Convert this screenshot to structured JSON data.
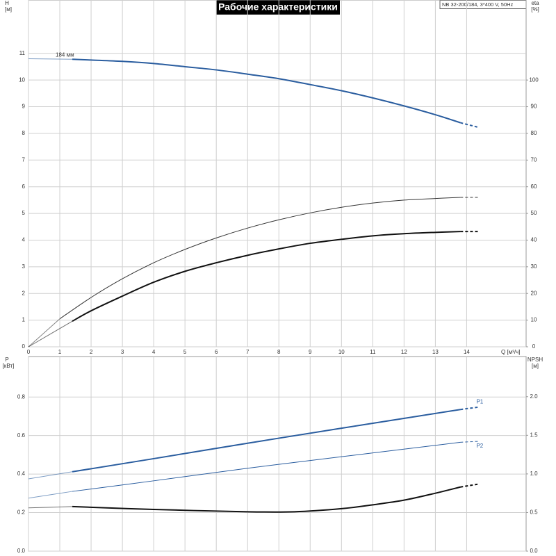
{
  "chart_data": [
    {
      "type": "line",
      "title": "Рабочие характеристики",
      "subtitle": "NB 32-200/184, 3*400 V, 50Hz",
      "ylabel": "H",
      "yunit": "[м]",
      "y2label": "eta",
      "y2unit": "[%]",
      "xlabel": "Q [м³/ч]",
      "annotations": [
        "184 мм"
      ],
      "xlim": [
        0,
        15.9
      ],
      "xticks": [
        0,
        1,
        2,
        3,
        4,
        5,
        6,
        7,
        8,
        9,
        10,
        11,
        12,
        13,
        14
      ],
      "ylim": [
        0,
        13
      ],
      "yticks": [
        0,
        1,
        2,
        3,
        4,
        5,
        6,
        7,
        8,
        9,
        10,
        11
      ],
      "y2lim": [
        0,
        130
      ],
      "y2ticks": [
        0,
        10,
        20,
        30,
        40,
        50,
        60,
        70,
        80,
        90,
        100
      ],
      "grid": true,
      "show_xtick_labels": true,
      "series": [
        {
          "color": "#2a5d9f",
          "line_width": 2,
          "axis": "y",
          "x": [
            0,
            1.4,
            2,
            3,
            4,
            5,
            6,
            7,
            8,
            9,
            10,
            11,
            12,
            13,
            13.8,
            14.4
          ],
          "values": [
            10.8,
            10.78,
            10.75,
            10.7,
            10.62,
            10.5,
            10.38,
            10.22,
            10.05,
            9.83,
            9.6,
            9.33,
            9.03,
            8.7,
            8.4,
            8.22
          ]
        },
        {
          "color": "#333333",
          "line_width": 1,
          "axis": "y2",
          "x": [
            0,
            1,
            2,
            3,
            4,
            5,
            6,
            7,
            8,
            9,
            10,
            11,
            12,
            13,
            13.8,
            14.4
          ],
          "values": [
            0,
            10.5,
            18.5,
            25.5,
            31.5,
            36.5,
            40.8,
            44.5,
            47.6,
            50.2,
            52.3,
            53.9,
            55,
            55.6,
            56,
            56
          ]
        },
        {
          "color": "#111111",
          "line_width": 2,
          "axis": "y2",
          "x": [
            0,
            1.4,
            2,
            3,
            4,
            5,
            6,
            7,
            8,
            9,
            10,
            11,
            12,
            13,
            13.8,
            14.4
          ],
          "values": [
            0,
            9.6,
            13.5,
            19,
            24.2,
            28.3,
            31.5,
            34.3,
            36.7,
            38.8,
            40.3,
            41.6,
            42.4,
            42.9,
            43.2,
            43.2
          ]
        }
      ]
    },
    {
      "type": "line",
      "ylabel": "P",
      "yunit": "[кВт]",
      "y2label": "NPSH",
      "y2unit": "[м]",
      "xlim": [
        0,
        15.9
      ],
      "xticks": [
        0,
        1,
        2,
        3,
        4,
        5,
        6,
        7,
        8,
        9,
        10,
        11,
        12,
        13,
        14
      ],
      "ylim": [
        0,
        1.01
      ],
      "yticks": [
        {
          "value": 0,
          "label": "0.0"
        },
        0.2,
        0.4,
        0.6,
        0.8
      ],
      "y2lim": [
        0,
        2.52
      ],
      "y2ticks": [
        {
          "value": 0,
          "label": "0.0"
        },
        0.5,
        {
          "value": 1,
          "label": "1.0"
        },
        1.5,
        {
          "value": 2,
          "label": "2.0"
        }
      ],
      "grid": true,
      "show_xtick_labels": false,
      "series": [
        {
          "name": "P1",
          "color": "#2a5d9f",
          "line_width": 2,
          "axis": "y",
          "x": [
            0,
            1.4,
            4,
            7,
            10,
            13.8,
            14.4
          ],
          "values": [
            0.375,
            0.412,
            0.48,
            0.56,
            0.638,
            0.735,
            0.748
          ]
        },
        {
          "name": "P2",
          "color": "#2a5d9f",
          "line_width": 1,
          "axis": "y",
          "x": [
            0,
            1.4,
            4,
            7,
            10,
            13.8,
            14.4
          ],
          "values": [
            0.275,
            0.31,
            0.365,
            0.43,
            0.49,
            0.565,
            0.57
          ]
        },
        {
          "color": "#111111",
          "line_width": 2,
          "axis": "y2",
          "x": [
            0,
            1.4,
            4,
            7,
            8.5,
            10,
            11,
            12,
            13,
            13.8,
            14.4
          ],
          "values": [
            0.56,
            0.577,
            0.54,
            0.51,
            0.51,
            0.55,
            0.6,
            0.66,
            0.75,
            0.83,
            0.87
          ]
        }
      ]
    }
  ]
}
